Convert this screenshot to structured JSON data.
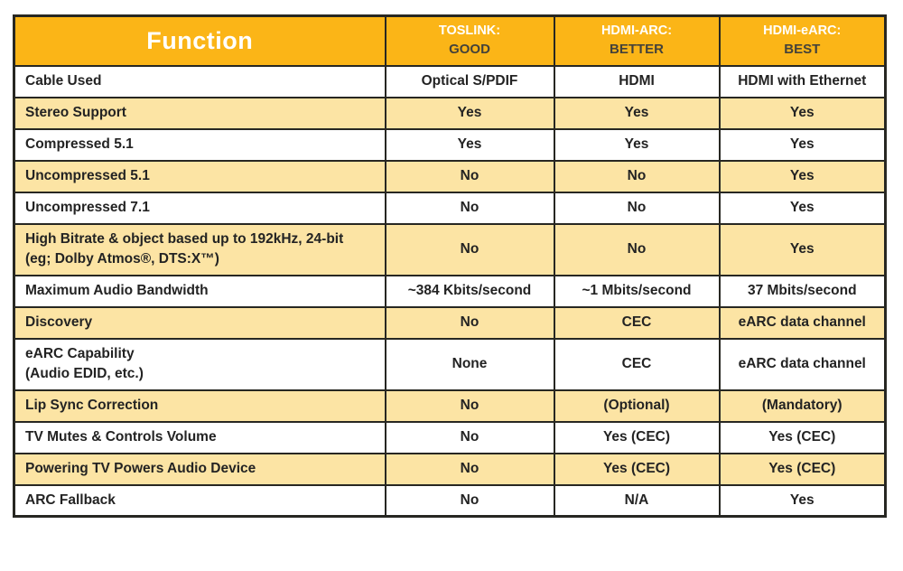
{
  "colors": {
    "header_bg": "#FBB517",
    "header_text": "#FFFFFF",
    "grade_text": "#44423A",
    "row_bg": "#FFFFFF",
    "row_alt_bg": "#FCE4A4",
    "border": "#272722",
    "text": "#232323",
    "page_bg": "#FFFFFF"
  },
  "table": {
    "header": {
      "function_label": "Function",
      "columns": [
        {
          "name": "TOSLINK:",
          "grade": "GOOD"
        },
        {
          "name": "HDMI-ARC:",
          "grade": "BETTER"
        },
        {
          "name": "HDMI-eARC:",
          "grade": "BEST"
        }
      ]
    },
    "rows": [
      {
        "function": "Cable Used",
        "values": [
          "Optical S/PDIF",
          "HDMI",
          "HDMI with Ethernet"
        ]
      },
      {
        "function": "Stereo Support",
        "values": [
          "Yes",
          "Yes",
          "Yes"
        ]
      },
      {
        "function": "Compressed 5.1",
        "values": [
          "Yes",
          "Yes",
          "Yes"
        ]
      },
      {
        "function": "Uncompressed 5.1",
        "values": [
          "No",
          "No",
          "Yes"
        ]
      },
      {
        "function": "Uncompressed 7.1",
        "values": [
          "No",
          "No",
          "Yes"
        ]
      },
      {
        "function": "High Bitrate & object based up to 192kHz, 24-bit\n(eg; Dolby Atmos®, DTS:X™)",
        "values": [
          "No",
          "No",
          "Yes"
        ]
      },
      {
        "function": "Maximum Audio Bandwidth",
        "values": [
          "~384 Kbits/second",
          "~1 Mbits/second",
          "37 Mbits/second"
        ]
      },
      {
        "function": "Discovery",
        "values": [
          "No",
          "CEC",
          "eARC data channel"
        ]
      },
      {
        "function": "eARC Capability\n(Audio EDID, etc.)",
        "values": [
          "None",
          "CEC",
          "eARC data channel"
        ]
      },
      {
        "function": "Lip Sync Correction",
        "values": [
          "No",
          "(Optional)",
          "(Mandatory)"
        ]
      },
      {
        "function": "TV Mutes & Controls Volume",
        "values": [
          "No",
          "Yes (CEC)",
          "Yes (CEC)"
        ]
      },
      {
        "function": "Powering TV Powers Audio Device",
        "values": [
          "No",
          "Yes (CEC)",
          "Yes (CEC)"
        ]
      },
      {
        "function": "ARC Fallback",
        "values": [
          "No",
          "N/A",
          "Yes"
        ]
      }
    ]
  }
}
